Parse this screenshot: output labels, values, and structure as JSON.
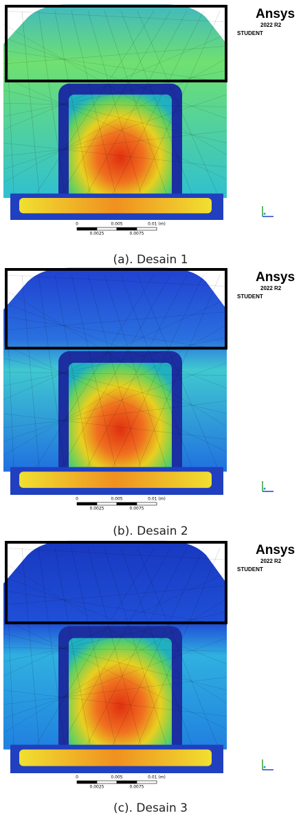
{
  "panels": [
    {
      "caption": "(a). Desain 1",
      "logo": "Ansys",
      "version": "2022 R2",
      "edition": "STUDENT",
      "scale_top": [
        "0",
        "0.005",
        "0.01 (m)"
      ],
      "scale_bottom": [
        "0.0025",
        "0.0075"
      ]
    },
    {
      "caption": "(b). Desain 2",
      "logo": "Ansys",
      "version": "2022 R2",
      "edition": "STUDENT",
      "scale_top": [
        "0",
        "0.005",
        "0.01 (m)"
      ],
      "scale_bottom": [
        "0.0025",
        "0.0075"
      ]
    },
    {
      "caption": "(c). Desain 3",
      "logo": "Ansys",
      "version": "2022 R2",
      "edition": "STUDENT",
      "scale_top": [
        "0",
        "0.005",
        "0.01 (m)"
      ],
      "scale_bottom": [
        "0.0025",
        "0.0075"
      ]
    }
  ]
}
